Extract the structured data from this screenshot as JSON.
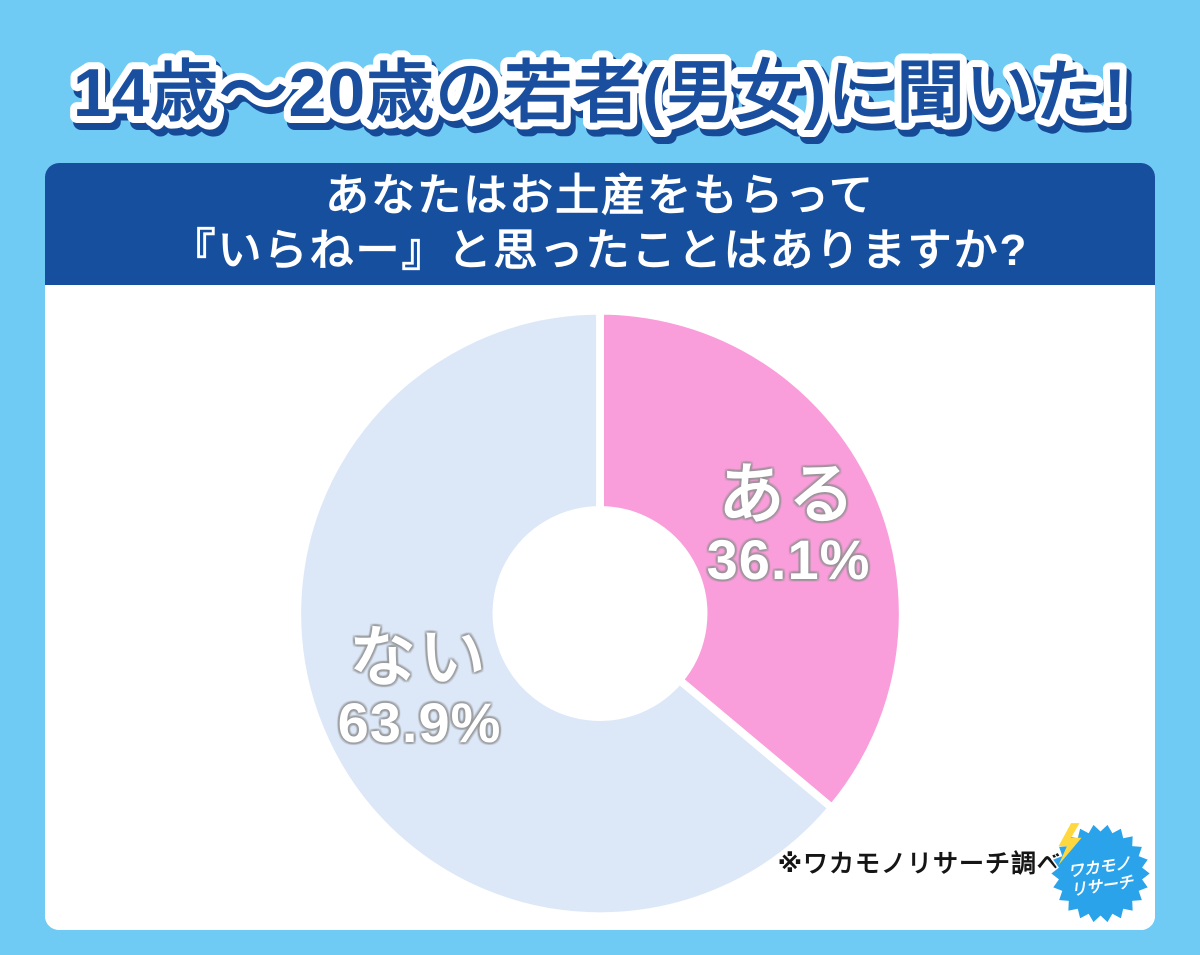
{
  "page_background": "#6fcbf3",
  "header": {
    "title": "14歳～20歳の若者(男女)に聞いた!",
    "title_color": "#1a4f9f",
    "question_banner": {
      "background": "#164f9e",
      "lines": [
        "あなたはお土産をもらって",
        "『いらねー』と思ったことはありますか?"
      ]
    }
  },
  "chart_data": {
    "type": "pie",
    "variant": "donut",
    "title": "あなたはお土産をもらって『いらねー』と思ったことはありますか?",
    "audience": "14歳～20歳の若者(男女)",
    "unit": "%",
    "start_angle_deg": 0,
    "direction": "clockwise",
    "inner_radius_ratio": 0.342,
    "legend": "none",
    "segments": [
      {
        "label": "ある",
        "value": 36.1,
        "display_value": "36.1%",
        "color": "#f99edb"
      },
      {
        "label": "ない",
        "value": 63.9,
        "display_value": "63.9%",
        "color": "#dce8f8"
      }
    ]
  },
  "footer": {
    "source_note": "※ワカモノリサーチ調べ",
    "logo": {
      "line1": "ワカモノ",
      "line2": "リサーチ",
      "color": "#2aa3ea",
      "bolt_color": "#ffd83f"
    }
  }
}
